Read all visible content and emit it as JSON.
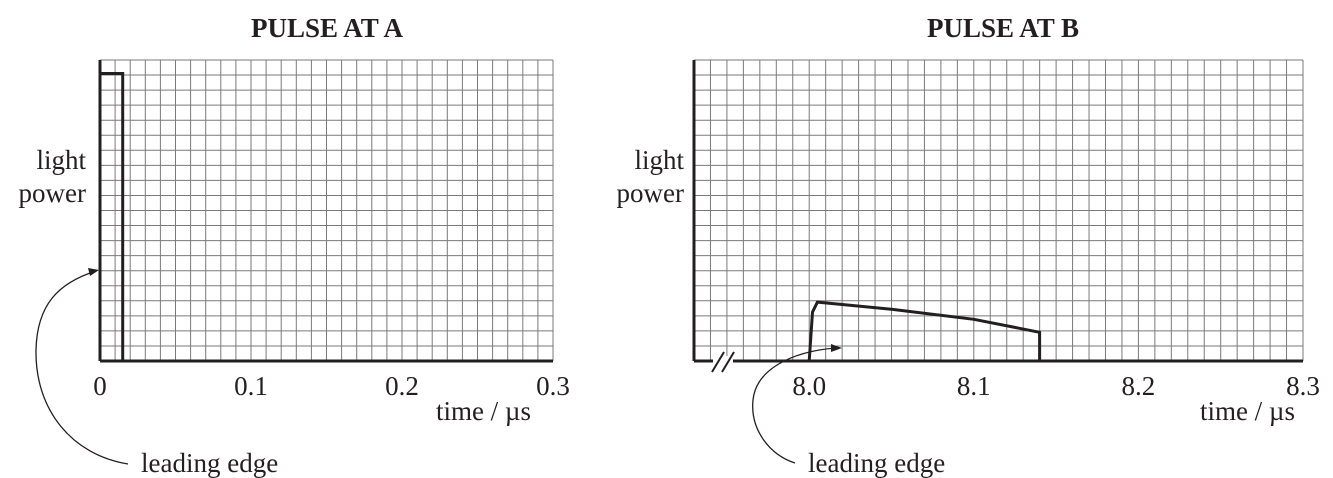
{
  "chart_data": [
    {
      "type": "line",
      "title": "PULSE AT A",
      "ylabel": [
        "light",
        "power"
      ],
      "xlabel": "time / µs",
      "xlim": [
        0,
        0.3
      ],
      "x_ticks": [
        "0",
        "0.1",
        "0.2",
        "0.3"
      ],
      "grid": true,
      "axis_break": false,
      "series": [
        {
          "x": [
            0,
            0,
            0.015,
            0.015
          ],
          "y": [
            0,
            1.0,
            1.0,
            0
          ]
        }
      ],
      "annotation": "leading edge"
    },
    {
      "type": "line",
      "title": "PULSE AT B",
      "ylabel": [
        "light",
        "power"
      ],
      "xlabel": "time / µs",
      "xlim": [
        7.93,
        8.3
      ],
      "x_ticks": [
        "8.0",
        "8.1",
        "8.2",
        "8.3"
      ],
      "grid": true,
      "axis_break": true,
      "series": [
        {
          "x": [
            8.0,
            8.002,
            8.005,
            8.05,
            8.1,
            8.14,
            8.14
          ],
          "y": [
            0,
            0.17,
            0.205,
            0.18,
            0.145,
            0.1,
            0
          ]
        }
      ],
      "annotation": "leading edge"
    }
  ]
}
